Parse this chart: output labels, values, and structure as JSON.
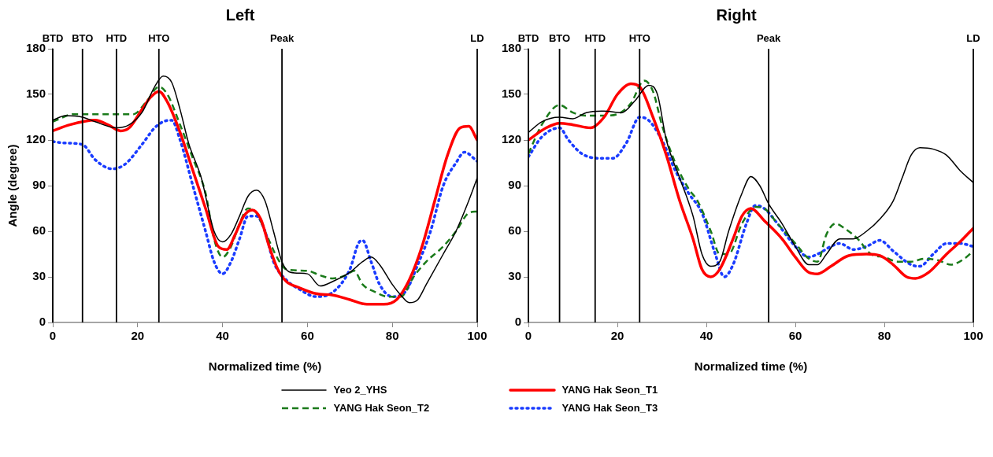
{
  "chart_data": [
    {
      "type": "line",
      "title": "Left",
      "xlabel": "Normalized time (%)",
      "ylabel": "Angle (degree)",
      "xlim": [
        0,
        100
      ],
      "xticks": [
        0,
        20,
        40,
        60,
        80,
        100
      ],
      "ylim": [
        0,
        180
      ],
      "yticks": [
        0,
        30,
        60,
        90,
        120,
        150,
        180
      ],
      "grid": false,
      "legend": "bottom",
      "marker": "none",
      "ref_lines": [
        {
          "axis": "x",
          "value": 0,
          "label": "BTD",
          "color": "#000000"
        },
        {
          "axis": "x",
          "value": 7,
          "label": "BTO",
          "color": "#000000"
        },
        {
          "axis": "x",
          "value": 15,
          "label": "HTD",
          "color": "#000000"
        },
        {
          "axis": "x",
          "value": 25,
          "label": "HTO",
          "color": "#000000"
        },
        {
          "axis": "x",
          "value": 54,
          "label": "Peak",
          "color": "#000000"
        },
        {
          "axis": "x",
          "value": 100,
          "label": "LD",
          "color": "#000000"
        }
      ],
      "series": [
        {
          "name": "Yeo 2_YHS",
          "color": "#000000",
          "line_style": "solid",
          "x": [
            0,
            3,
            7,
            10,
            15,
            18,
            21,
            24,
            26,
            28,
            30,
            32,
            35,
            38,
            40,
            42,
            44,
            46,
            48,
            50,
            52,
            54,
            56,
            60,
            63,
            66,
            70,
            73,
            75,
            77,
            80,
            82,
            84,
            86,
            88,
            92,
            95,
            98,
            100
          ],
          "values": [
            133,
            136,
            135,
            132,
            128,
            130,
            138,
            155,
            162,
            158,
            140,
            118,
            95,
            60,
            53,
            58,
            70,
            83,
            87,
            80,
            60,
            40,
            33,
            32,
            24,
            27,
            33,
            40,
            43,
            38,
            25,
            18,
            13,
            15,
            25,
            45,
            60,
            80,
            95
          ]
        },
        {
          "name": "YANG Hak Seon_T1",
          "color": "#ff0000",
          "line_style": "solid",
          "x": [
            0,
            4,
            10,
            13,
            16,
            18,
            21,
            23,
            25,
            27,
            30,
            33,
            36,
            39,
            41,
            43,
            45,
            47,
            49,
            51,
            53,
            55,
            58,
            62,
            66,
            70,
            74,
            78,
            81,
            84,
            87,
            90,
            93,
            96,
            98,
            100
          ],
          "values": [
            126,
            130,
            133,
            130,
            126,
            128,
            140,
            148,
            152,
            145,
            125,
            100,
            75,
            50,
            48,
            58,
            70,
            74,
            68,
            50,
            35,
            27,
            23,
            19,
            18,
            15,
            12,
            12,
            15,
            28,
            50,
            80,
            110,
            128,
            129,
            120
          ]
        },
        {
          "name": "YANG Hak Seon_T2",
          "color": "#1a7a1a",
          "line_style": "dashed",
          "x": [
            0,
            5,
            10,
            15,
            19,
            22,
            25,
            27,
            30,
            33,
            36,
            38,
            40,
            42,
            44,
            46,
            48,
            50,
            53,
            55,
            60,
            63,
            66,
            69,
            71,
            73,
            76,
            79,
            82,
            85,
            88,
            92,
            95,
            98,
            100
          ],
          "values": [
            132,
            137,
            137,
            137,
            137,
            145,
            155,
            150,
            130,
            108,
            85,
            55,
            43,
            50,
            65,
            75,
            72,
            60,
            42,
            35,
            34,
            31,
            29,
            31,
            34,
            25,
            20,
            17,
            17,
            30,
            40,
            50,
            60,
            72,
            73
          ]
        },
        {
          "name": "YANG Hak Seon_T3",
          "color": "#1a3cff",
          "line_style": "dotted",
          "x": [
            0,
            3,
            7,
            10,
            14,
            17,
            21,
            24,
            26,
            28,
            30,
            33,
            36,
            38,
            40,
            42,
            44,
            46,
            48,
            50,
            52,
            55,
            58,
            62,
            66,
            70,
            72,
            73,
            75,
            77,
            80,
            83,
            86,
            89,
            92,
            95,
            97,
            100
          ],
          "values": [
            119,
            118,
            117,
            107,
            101,
            104,
            117,
            128,
            132,
            133,
            120,
            90,
            60,
            40,
            32,
            40,
            55,
            70,
            70,
            60,
            40,
            28,
            22,
            17,
            20,
            35,
            52,
            54,
            40,
            25,
            17,
            20,
            38,
            60,
            90,
            105,
            112,
            106
          ]
        }
      ]
    },
    {
      "type": "line",
      "title": "Right",
      "xlabel": "Normalized time (%)",
      "xlim": [
        0,
        100
      ],
      "xticks": [
        0,
        20,
        40,
        60,
        80,
        100
      ],
      "ylim": [
        0,
        180
      ],
      "yticks": [
        0,
        30,
        60,
        90,
        120,
        150,
        180
      ],
      "grid": false,
      "marker": "none",
      "ref_lines": [
        {
          "axis": "x",
          "value": 0,
          "label": "BTD",
          "color": "#000000"
        },
        {
          "axis": "x",
          "value": 7,
          "label": "BTO",
          "color": "#000000"
        },
        {
          "axis": "x",
          "value": 15,
          "label": "HTD",
          "color": "#000000"
        },
        {
          "axis": "x",
          "value": 25,
          "label": "HTO",
          "color": "#000000"
        },
        {
          "axis": "x",
          "value": 54,
          "label": "Peak",
          "color": "#000000"
        },
        {
          "axis": "x",
          "value": 100,
          "label": "LD",
          "color": "#000000"
        }
      ],
      "series": [
        {
          "color": "#000000",
          "line_style": "solid",
          "x": [
            0,
            3,
            7,
            10,
            13,
            17,
            21,
            24,
            27,
            29,
            31,
            34,
            37,
            39,
            41,
            43,
            45,
            48,
            50,
            52,
            54,
            57,
            60,
            63,
            65,
            67,
            70,
            73,
            76,
            79,
            82,
            84,
            86,
            88,
            91,
            94,
            97,
            100
          ],
          "values": [
            125,
            132,
            135,
            134,
            138,
            139,
            138,
            146,
            156,
            150,
            120,
            95,
            70,
            45,
            37,
            40,
            60,
            85,
            96,
            90,
            78,
            65,
            50,
            38,
            38,
            45,
            55,
            55,
            60,
            68,
            80,
            95,
            110,
            115,
            114,
            110,
            100,
            92
          ]
        },
        {
          "color": "#ff0000",
          "line_style": "solid",
          "x": [
            0,
            4,
            7,
            10,
            14,
            17,
            20,
            23,
            25,
            28,
            31,
            34,
            37,
            39,
            41,
            43,
            46,
            48,
            50,
            53,
            57,
            60,
            63,
            65,
            68,
            72,
            76,
            79,
            82,
            85,
            87,
            90,
            94,
            97,
            100
          ],
          "values": [
            120,
            128,
            131,
            130,
            128,
            135,
            150,
            157,
            155,
            135,
            110,
            80,
            55,
            35,
            30,
            35,
            55,
            70,
            75,
            67,
            55,
            43,
            33,
            32,
            37,
            44,
            45,
            44,
            38,
            30,
            29,
            33,
            45,
            53,
            62
          ]
        },
        {
          "color": "#1a7a1a",
          "line_style": "dashed",
          "x": [
            0,
            3,
            7,
            10,
            13,
            17,
            20,
            23,
            26,
            28,
            30,
            33,
            36,
            38,
            41,
            43,
            45,
            48,
            51,
            53,
            56,
            60,
            63,
            65,
            67,
            69,
            71,
            74,
            77,
            80,
            83,
            86,
            89,
            92,
            95,
            98,
            100
          ],
          "values": [
            111,
            130,
            143,
            138,
            136,
            136,
            137,
            144,
            159,
            152,
            130,
            105,
            88,
            80,
            60,
            45,
            45,
            65,
            76,
            75,
            65,
            52,
            42,
            40,
            58,
            65,
            62,
            55,
            45,
            43,
            40,
            40,
            42,
            41,
            38,
            42,
            47
          ]
        },
        {
          "color": "#1a3cff",
          "line_style": "dotted",
          "x": [
            0,
            3,
            7,
            9,
            12,
            16,
            19,
            22,
            25,
            27,
            30,
            33,
            36,
            39,
            42,
            44,
            46,
            49,
            51,
            53,
            56,
            60,
            63,
            65,
            68,
            70,
            73,
            76,
            79,
            82,
            86,
            88,
            91,
            94,
            97,
            100
          ],
          "values": [
            109,
            122,
            128,
            120,
            111,
            108,
            108,
            118,
            135,
            133,
            120,
            100,
            85,
            72,
            45,
            30,
            38,
            65,
            77,
            75,
            65,
            50,
            43,
            45,
            50,
            52,
            48,
            50,
            54,
            47,
            38,
            37,
            45,
            52,
            52,
            50
          ]
        }
      ]
    }
  ]
}
